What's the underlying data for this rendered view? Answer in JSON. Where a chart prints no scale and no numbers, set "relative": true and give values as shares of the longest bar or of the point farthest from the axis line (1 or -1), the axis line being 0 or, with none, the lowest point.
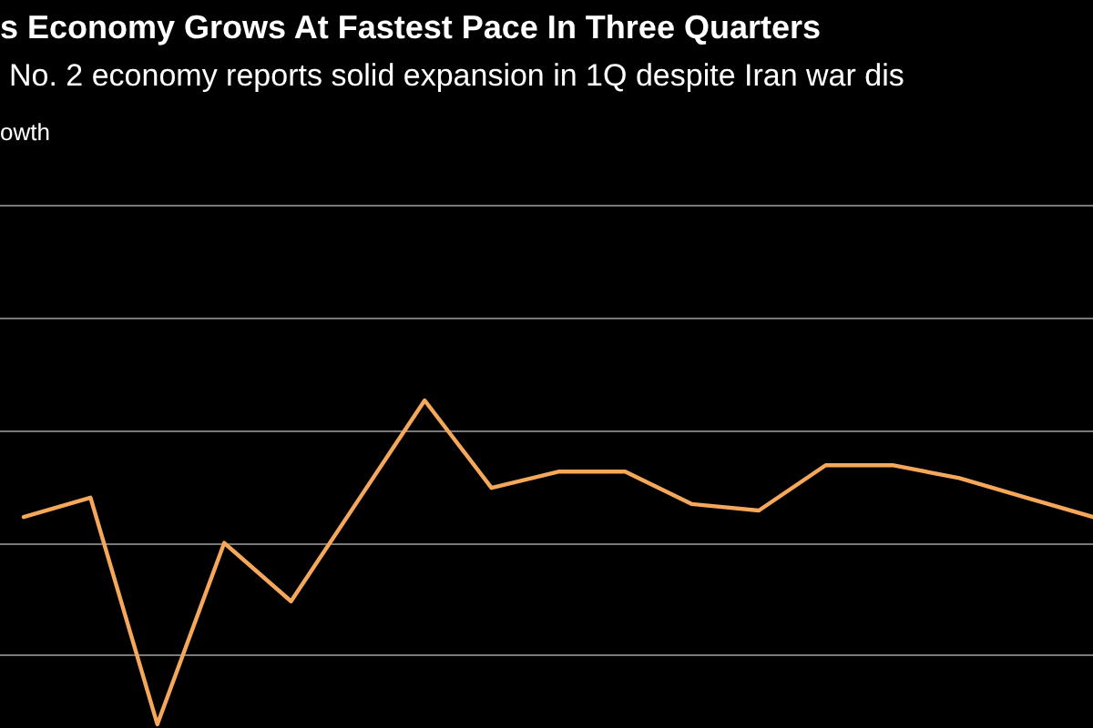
{
  "chart_data": {
    "type": "line",
    "title": "s Economy Grows At Fastest Pace In Three Quarters",
    "subtitle": "No. 2 economy reports solid expansion in 1Q despite Iran war dis",
    "annotations": [
      "owth"
    ],
    "relative": true,
    "grid": true,
    "categories": [
      null,
      null,
      null,
      null,
      null,
      null,
      null,
      null,
      null,
      null,
      null,
      null,
      null,
      null,
      null,
      null,
      null
    ],
    "series": [
      {
        "color": "#f5a85a",
        "values": [
          0.64,
          0.7,
          0,
          0.56,
          0.38,
          0.69,
          1,
          0.73,
          0.78,
          0.78,
          0.68,
          0.66,
          0.8,
          0.8,
          0.76,
          0.7,
          0.64
        ]
      }
    ]
  }
}
